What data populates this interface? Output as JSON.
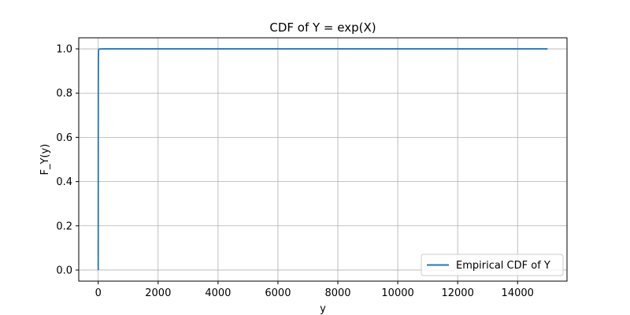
{
  "chart_data": {
    "type": "line",
    "title": "CDF of Y = exp(X)",
    "xlabel": "y",
    "ylabel": "F_Y(y)",
    "xlim": [
      -650,
      15650
    ],
    "ylim": [
      -0.05,
      1.05
    ],
    "xticks": [
      0,
      2000,
      4000,
      6000,
      8000,
      10000,
      12000,
      14000
    ],
    "yticks": [
      0.0,
      0.2,
      0.4,
      0.6,
      0.8,
      1.0
    ],
    "xtick_labels": [
      "0",
      "2000",
      "4000",
      "6000",
      "8000",
      "10000",
      "12000",
      "14000"
    ],
    "ytick_labels": [
      "0.0",
      "0.2",
      "0.4",
      "0.6",
      "0.8",
      "1.0"
    ],
    "grid": true,
    "legend_position": "bottom-right",
    "series": [
      {
        "name": "Empirical CDF of Y",
        "color": "#1f77b4",
        "x": [
          0.0,
          0.5,
          1.0,
          2.0,
          3.0,
          5.0,
          10.0,
          20.0,
          50.0,
          100.0,
          200.0,
          500.0,
          1000.0,
          15000.0
        ],
        "y": [
          0.0,
          0.244,
          0.5,
          0.756,
          0.864,
          0.947,
          0.989,
          0.999,
          0.9996,
          0.9998,
          0.9999,
          0.99995,
          0.99998,
          1.0
        ]
      }
    ]
  }
}
